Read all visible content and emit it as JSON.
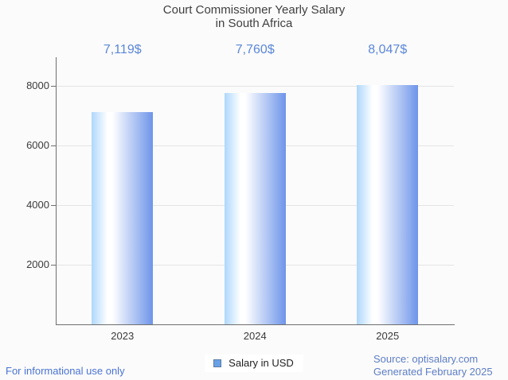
{
  "title": {
    "line1": "Court Commissioner Yearly Salary",
    "line2": "in South Africa"
  },
  "chart_data": {
    "type": "bar",
    "title": "Court Commissioner Yearly Salary in South Africa",
    "categories": [
      "2023",
      "2024",
      "2025"
    ],
    "series": [
      {
        "name": "Salary in USD",
        "values": [
          7119,
          7760,
          8047
        ]
      }
    ],
    "value_labels": [
      "7,119$",
      "7,760$",
      "8,047$"
    ],
    "xlabel": "",
    "ylabel": "",
    "ylim": [
      0,
      8950
    ],
    "yticks": [
      2000,
      4000,
      6000,
      8000
    ],
    "grid": true,
    "legend_position": "bottom",
    "colors": {
      "bar_gradient_left": "#aed7fb",
      "bar_gradient_mid": "#ffffff",
      "bar_gradient_right": "#6e95e9",
      "value_label": "#5b87d9",
      "axis_line": "#6f6f6f",
      "gridline": "#e4e4e4",
      "tick_label": "#3b3b3b",
      "background": "#fbfbfb"
    }
  },
  "legend": {
    "label": "Salary in USD",
    "swatch_fill": "#68a1e6",
    "swatch_border": "#5c7ba3"
  },
  "footer": {
    "left_note": "For informational use only",
    "source": "Source: optisalary.com",
    "generated": "Generated February 2025"
  }
}
